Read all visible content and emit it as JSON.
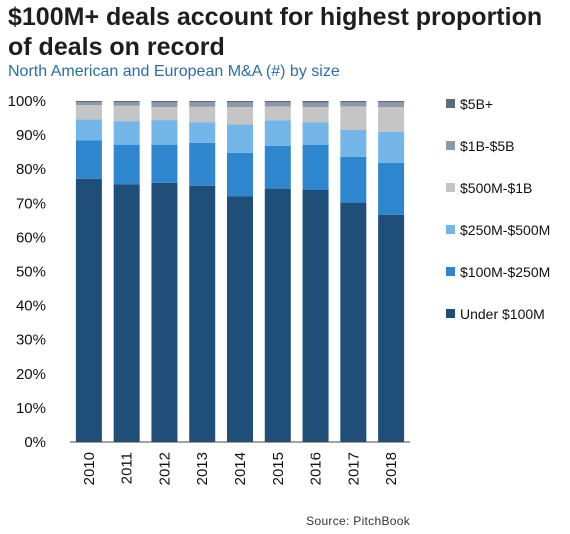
{
  "title": "$100M+ deals account for highest proportion of deals on record",
  "subtitle": "North American and European M&A (#) by size",
  "source": "Source: PitchBook",
  "chart_data": {
    "type": "bar",
    "stacked": true,
    "title": "$100M+ deals account for highest proportion of deals on record",
    "subtitle": "North American and European M&A (#) by size",
    "xlabel": "",
    "ylabel": "",
    "ylim": [
      0,
      100
    ],
    "y_ticks": [
      "0%",
      "10%",
      "20%",
      "30%",
      "40%",
      "50%",
      "60%",
      "70%",
      "80%",
      "90%",
      "100%"
    ],
    "categories": [
      "2010",
      "2011",
      "2012",
      "2013",
      "2014",
      "2015",
      "2016",
      "2017",
      "2018"
    ],
    "series": [
      {
        "name": "Under $100M",
        "color": "#1f4e79",
        "values": [
          77.2,
          75.6,
          76.0,
          75.1,
          72.0,
          74.3,
          73.9,
          70.2,
          66.6
        ]
      },
      {
        "name": "$100M-$250M",
        "color": "#2e86cf",
        "values": [
          11.3,
          11.6,
          11.2,
          12.6,
          12.8,
          12.6,
          13.2,
          13.4,
          15.3
        ]
      },
      {
        "name": "$250M-$500M",
        "color": "#74b6e8",
        "values": [
          6.1,
          6.9,
          7.2,
          6.1,
          8.3,
          7.4,
          6.7,
          7.9,
          9.1
        ]
      },
      {
        "name": "$500M-$1B",
        "color": "#c5c5c5",
        "values": [
          4.2,
          4.5,
          3.8,
          4.5,
          5.1,
          4.1,
          4.4,
          6.9,
          7.2
        ]
      },
      {
        "name": "$1B-$5B",
        "color": "#8c99aa",
        "values": [
          0.9,
          1.0,
          1.4,
          1.4,
          1.4,
          1.2,
          1.3,
          1.2,
          1.4
        ]
      },
      {
        "name": "$5B+",
        "color": "#5d6b80",
        "values": [
          0.3,
          0.4,
          0.4,
          0.3,
          0.4,
          0.4,
          0.5,
          0.4,
          0.4
        ]
      }
    ],
    "legend_order": [
      "$5B+",
      "$1B-$5B",
      "$500M-$1B",
      "$250M-$500M",
      "$100M-$250M",
      "Under $100M"
    ],
    "legend_position": "right",
    "grid": false
  }
}
